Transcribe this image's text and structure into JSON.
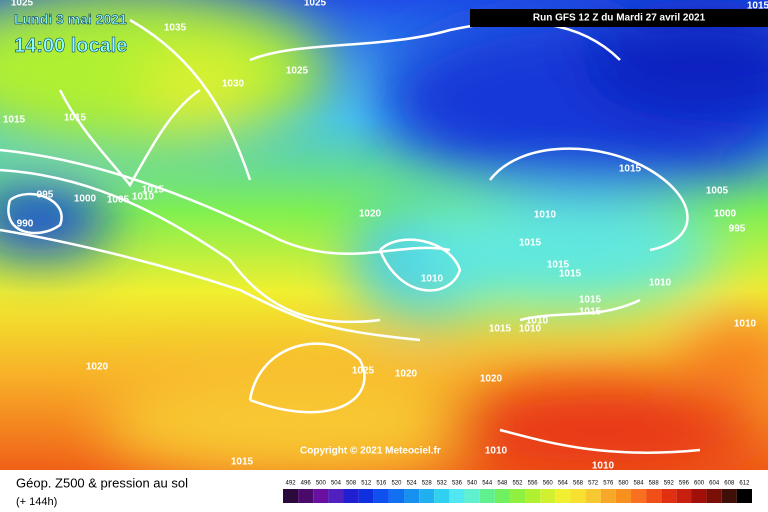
{
  "header": {
    "date": "Lundi 3 mai 2021",
    "time": "14:00 locale",
    "run": "Run GFS 12 Z du Mardi 27 avril 2021"
  },
  "copyright": "Copyright © 2021 Meteociel.fr",
  "footer": {
    "title": "Géop. Z500 & pression au sol",
    "lead": "(+ 144h)"
  },
  "legend": {
    "ticks": [
      492,
      496,
      500,
      504,
      508,
      512,
      516,
      520,
      524,
      528,
      532,
      536,
      540,
      544,
      548,
      552,
      556,
      560,
      564,
      568,
      572,
      576,
      580,
      584,
      588,
      592,
      596,
      600,
      604,
      608,
      612
    ],
    "colors": [
      "#2a0a3a",
      "#4a0a6a",
      "#6a10a0",
      "#5020c0",
      "#2020d0",
      "#1030e0",
      "#1050f0",
      "#1070f0",
      "#1890f0",
      "#20b0f0",
      "#30d0f0",
      "#50e8f0",
      "#60f0d0",
      "#60f090",
      "#70f060",
      "#90f040",
      "#b0f030",
      "#d0f030",
      "#f0f030",
      "#f8e030",
      "#f8c830",
      "#f8a828",
      "#f89020",
      "#f87020",
      "#f05018",
      "#e03010",
      "#c82010",
      "#a01008",
      "#781008",
      "#401008",
      "#000000"
    ]
  },
  "isobars": {
    "labels": [
      "1025",
      "1035",
      "1025",
      "1025",
      "1030",
      "1015",
      "1015",
      "995",
      "990",
      "1000",
      "1005",
      "1010",
      "1015",
      "1020",
      "1015",
      "1005",
      "1000",
      "995",
      "1010",
      "1015",
      "1010",
      "1015",
      "1015",
      "1010",
      "1015",
      "1015",
      "1010",
      "1015",
      "1010",
      "1010",
      "1020",
      "1025",
      "1020",
      "1020",
      "1015",
      "1010",
      "1010",
      "1015"
    ]
  }
}
